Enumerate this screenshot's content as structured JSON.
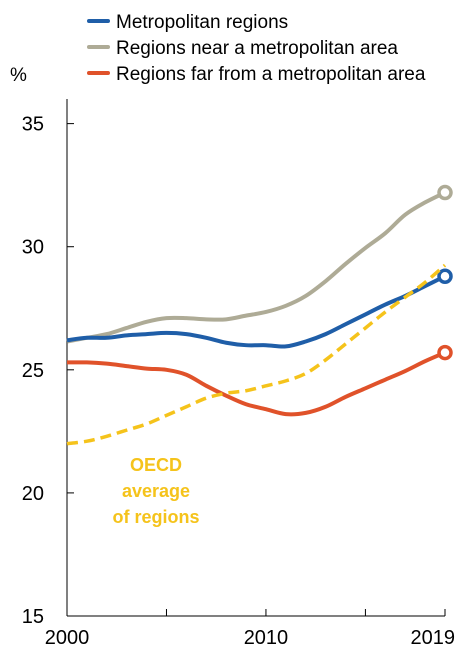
{
  "chart_data": {
    "type": "line",
    "ylabel": "%",
    "ylim": [
      15,
      36
    ],
    "xlim": [
      2000,
      2019
    ],
    "yticks": [
      15,
      20,
      25,
      30,
      35
    ],
    "xticks": [
      2000,
      2010,
      2019
    ],
    "grid": false,
    "legend_position": "top",
    "series": [
      {
        "name": "Metropolitan regions",
        "color": "#1f5ea8",
        "style": "solid",
        "end_marker": true,
        "x": [
          2000,
          2001,
          2002,
          2003,
          2004,
          2005,
          2006,
          2007,
          2008,
          2009,
          2010,
          2011,
          2012,
          2013,
          2014,
          2015,
          2016,
          2017,
          2018,
          2019
        ],
        "y": [
          26.2,
          26.3,
          26.3,
          26.4,
          26.45,
          26.5,
          26.45,
          26.3,
          26.1,
          26.0,
          26.0,
          25.95,
          26.15,
          26.45,
          26.85,
          27.25,
          27.65,
          28.0,
          28.4,
          28.8
        ]
      },
      {
        "name": "Regions near a metropolitan area",
        "color": "#aeab96",
        "style": "solid",
        "end_marker": true,
        "x": [
          2000,
          2001,
          2002,
          2003,
          2004,
          2005,
          2006,
          2007,
          2008,
          2009,
          2010,
          2011,
          2012,
          2013,
          2014,
          2015,
          2016,
          2017,
          2018,
          2019
        ],
        "y": [
          26.15,
          26.3,
          26.45,
          26.7,
          26.95,
          27.1,
          27.1,
          27.05,
          27.05,
          27.2,
          27.35,
          27.6,
          28.0,
          28.6,
          29.3,
          29.95,
          30.55,
          31.3,
          31.8,
          32.2
        ]
      },
      {
        "name": "Regions far from a metropolitan area",
        "color": "#e0522a",
        "style": "solid",
        "end_marker": true,
        "x": [
          2000,
          2001,
          2002,
          2003,
          2004,
          2005,
          2006,
          2007,
          2008,
          2009,
          2010,
          2011,
          2012,
          2013,
          2014,
          2015,
          2016,
          2017,
          2018,
          2019
        ],
        "y": [
          25.3,
          25.3,
          25.25,
          25.15,
          25.05,
          25.0,
          24.8,
          24.35,
          23.95,
          23.6,
          23.4,
          23.2,
          23.25,
          23.5,
          23.9,
          24.25,
          24.6,
          24.95,
          25.35,
          25.7
        ]
      },
      {
        "name": "OECD average of regions",
        "color": "#f5c31b",
        "style": "dashed",
        "end_marker": false,
        "x": [
          2000,
          2001,
          2002,
          2003,
          2004,
          2005,
          2006,
          2007,
          2008,
          2009,
          2010,
          2011,
          2012,
          2013,
          2014,
          2015,
          2016,
          2017,
          2018,
          2019
        ],
        "y": [
          22.0,
          22.1,
          22.3,
          22.55,
          22.8,
          23.15,
          23.5,
          23.85,
          24.05,
          24.15,
          24.35,
          24.55,
          24.85,
          25.4,
          26.05,
          26.7,
          27.35,
          27.95,
          28.55,
          29.25
        ]
      }
    ],
    "legend": [
      {
        "label": "Metropolitan regions",
        "color": "#1f5ea8"
      },
      {
        "label": "Regions near a metropolitan area",
        "color": "#aeab96"
      },
      {
        "label": "Regions far from a metropolitan area",
        "color": "#e0522a"
      }
    ],
    "annotation": {
      "lines": [
        "OECD",
        "average",
        "of regions"
      ],
      "color": "#f5c31b"
    }
  }
}
